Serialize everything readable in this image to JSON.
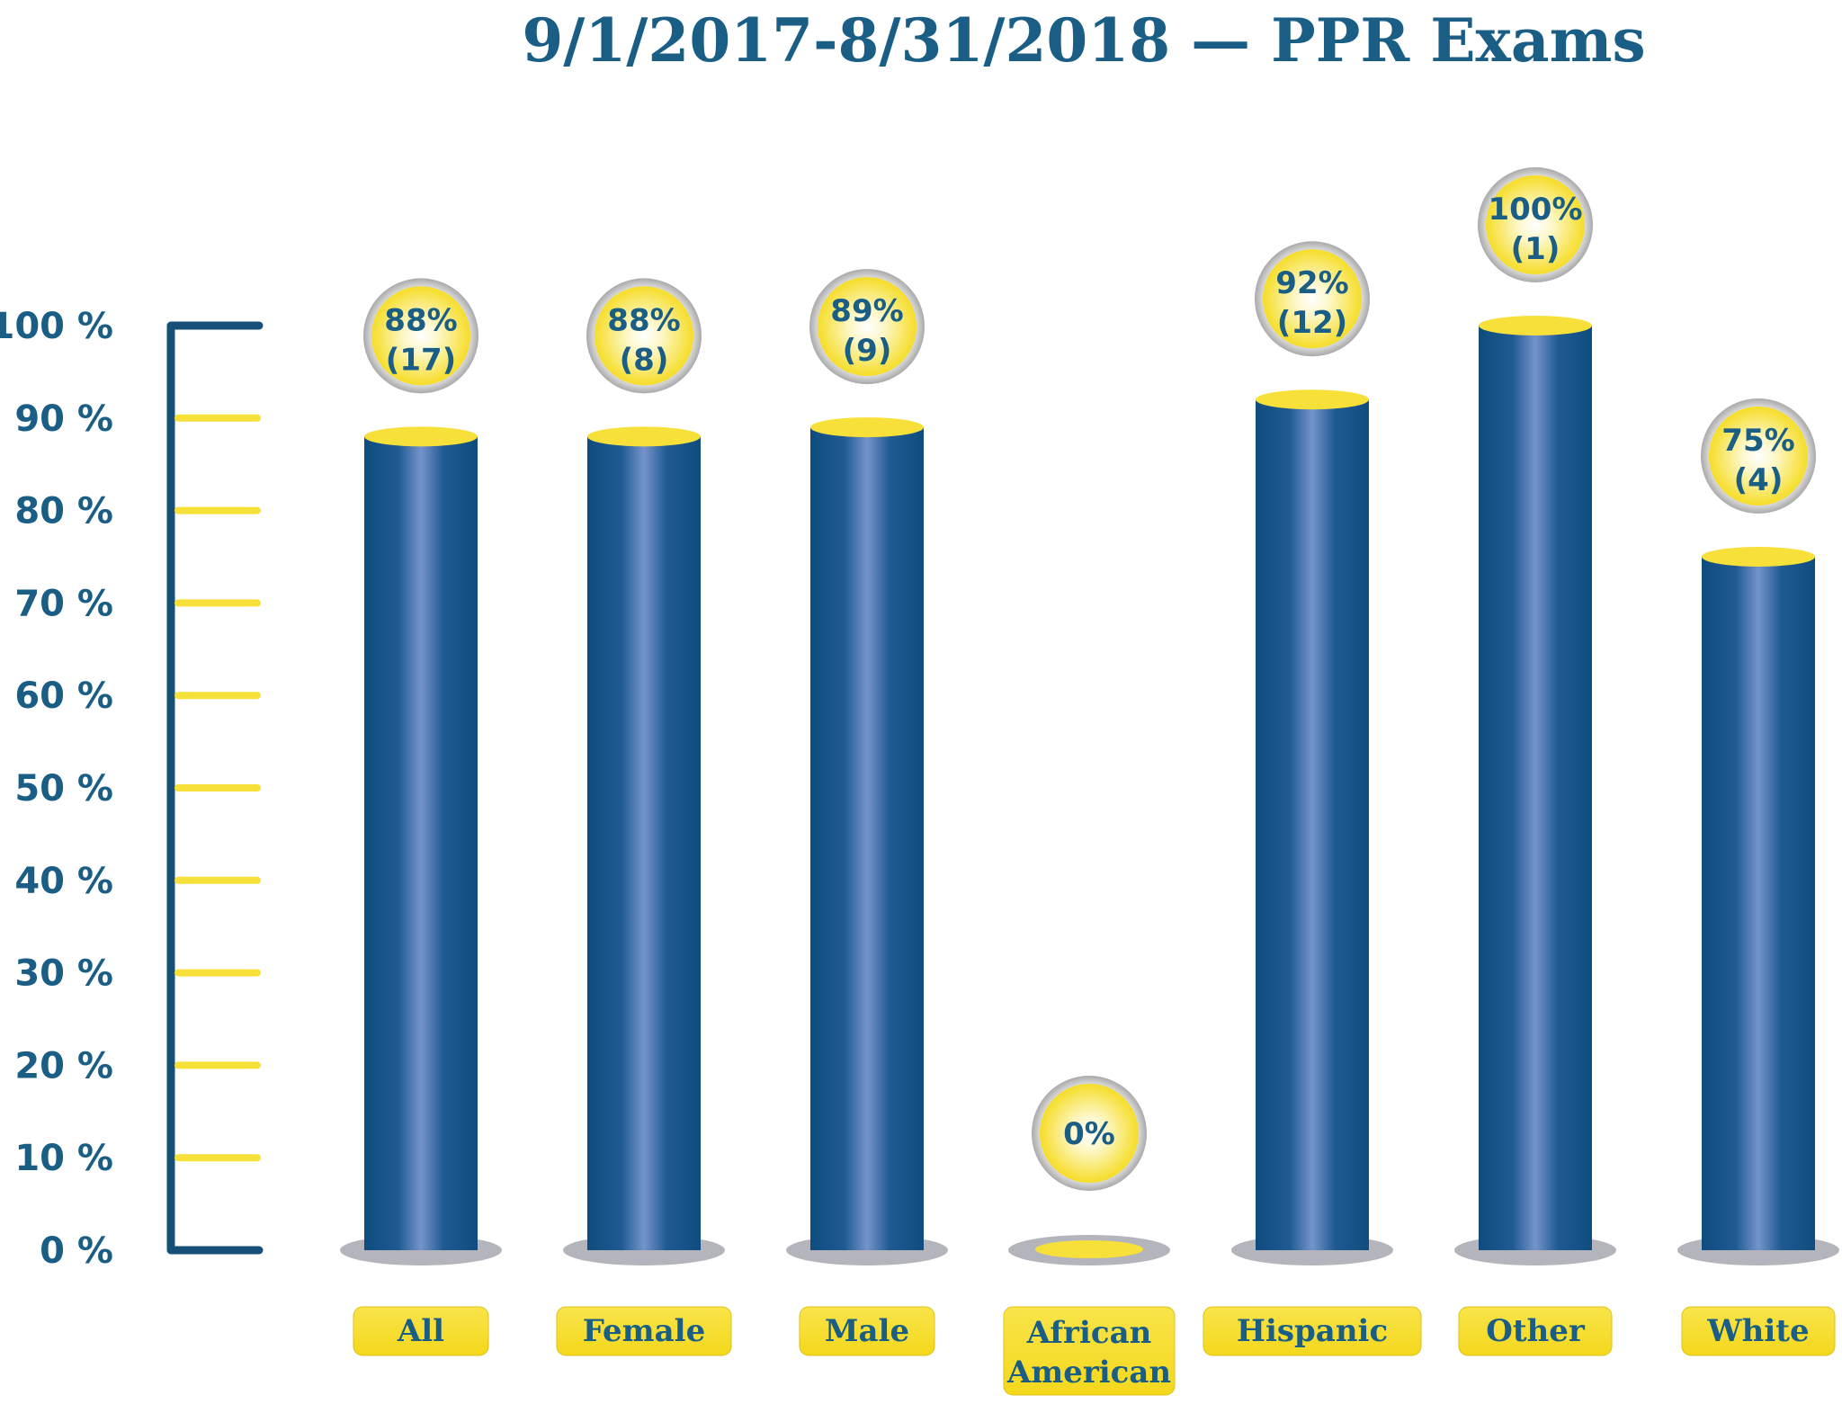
{
  "chart_data": {
    "type": "bar",
    "title": "9/1/2017-8/31/2018 — PPR Exams",
    "categories": [
      "All",
      "Female",
      "Male",
      "African American",
      "Hispanic",
      "Other",
      "White"
    ],
    "values": [
      88,
      88,
      89,
      0,
      92,
      100,
      75
    ],
    "counts": [
      "(17)",
      "(8)",
      "(9)",
      "",
      "(12)",
      "(1)",
      "(4)"
    ],
    "data_labels": [
      "88%",
      "88%",
      "89%",
      "0%",
      "92%",
      "100%",
      "75%"
    ],
    "yticks": [
      "0 %",
      "10 %",
      "20 %",
      "30 %",
      "40 %",
      "50 %",
      "60 %",
      "70 %",
      "80 %",
      "90 %",
      "100 %"
    ],
    "ylim": [
      0,
      100
    ],
    "xlabel": "",
    "ylabel": "",
    "grid": false,
    "legend": "none",
    "colors": {
      "bar": "#0f4c7e",
      "bar_highlight": "#6f8fc6",
      "accent": "#f7e03a",
      "text": "#1a5e86",
      "axis": "#165079",
      "base": "#b4b5bc"
    }
  }
}
